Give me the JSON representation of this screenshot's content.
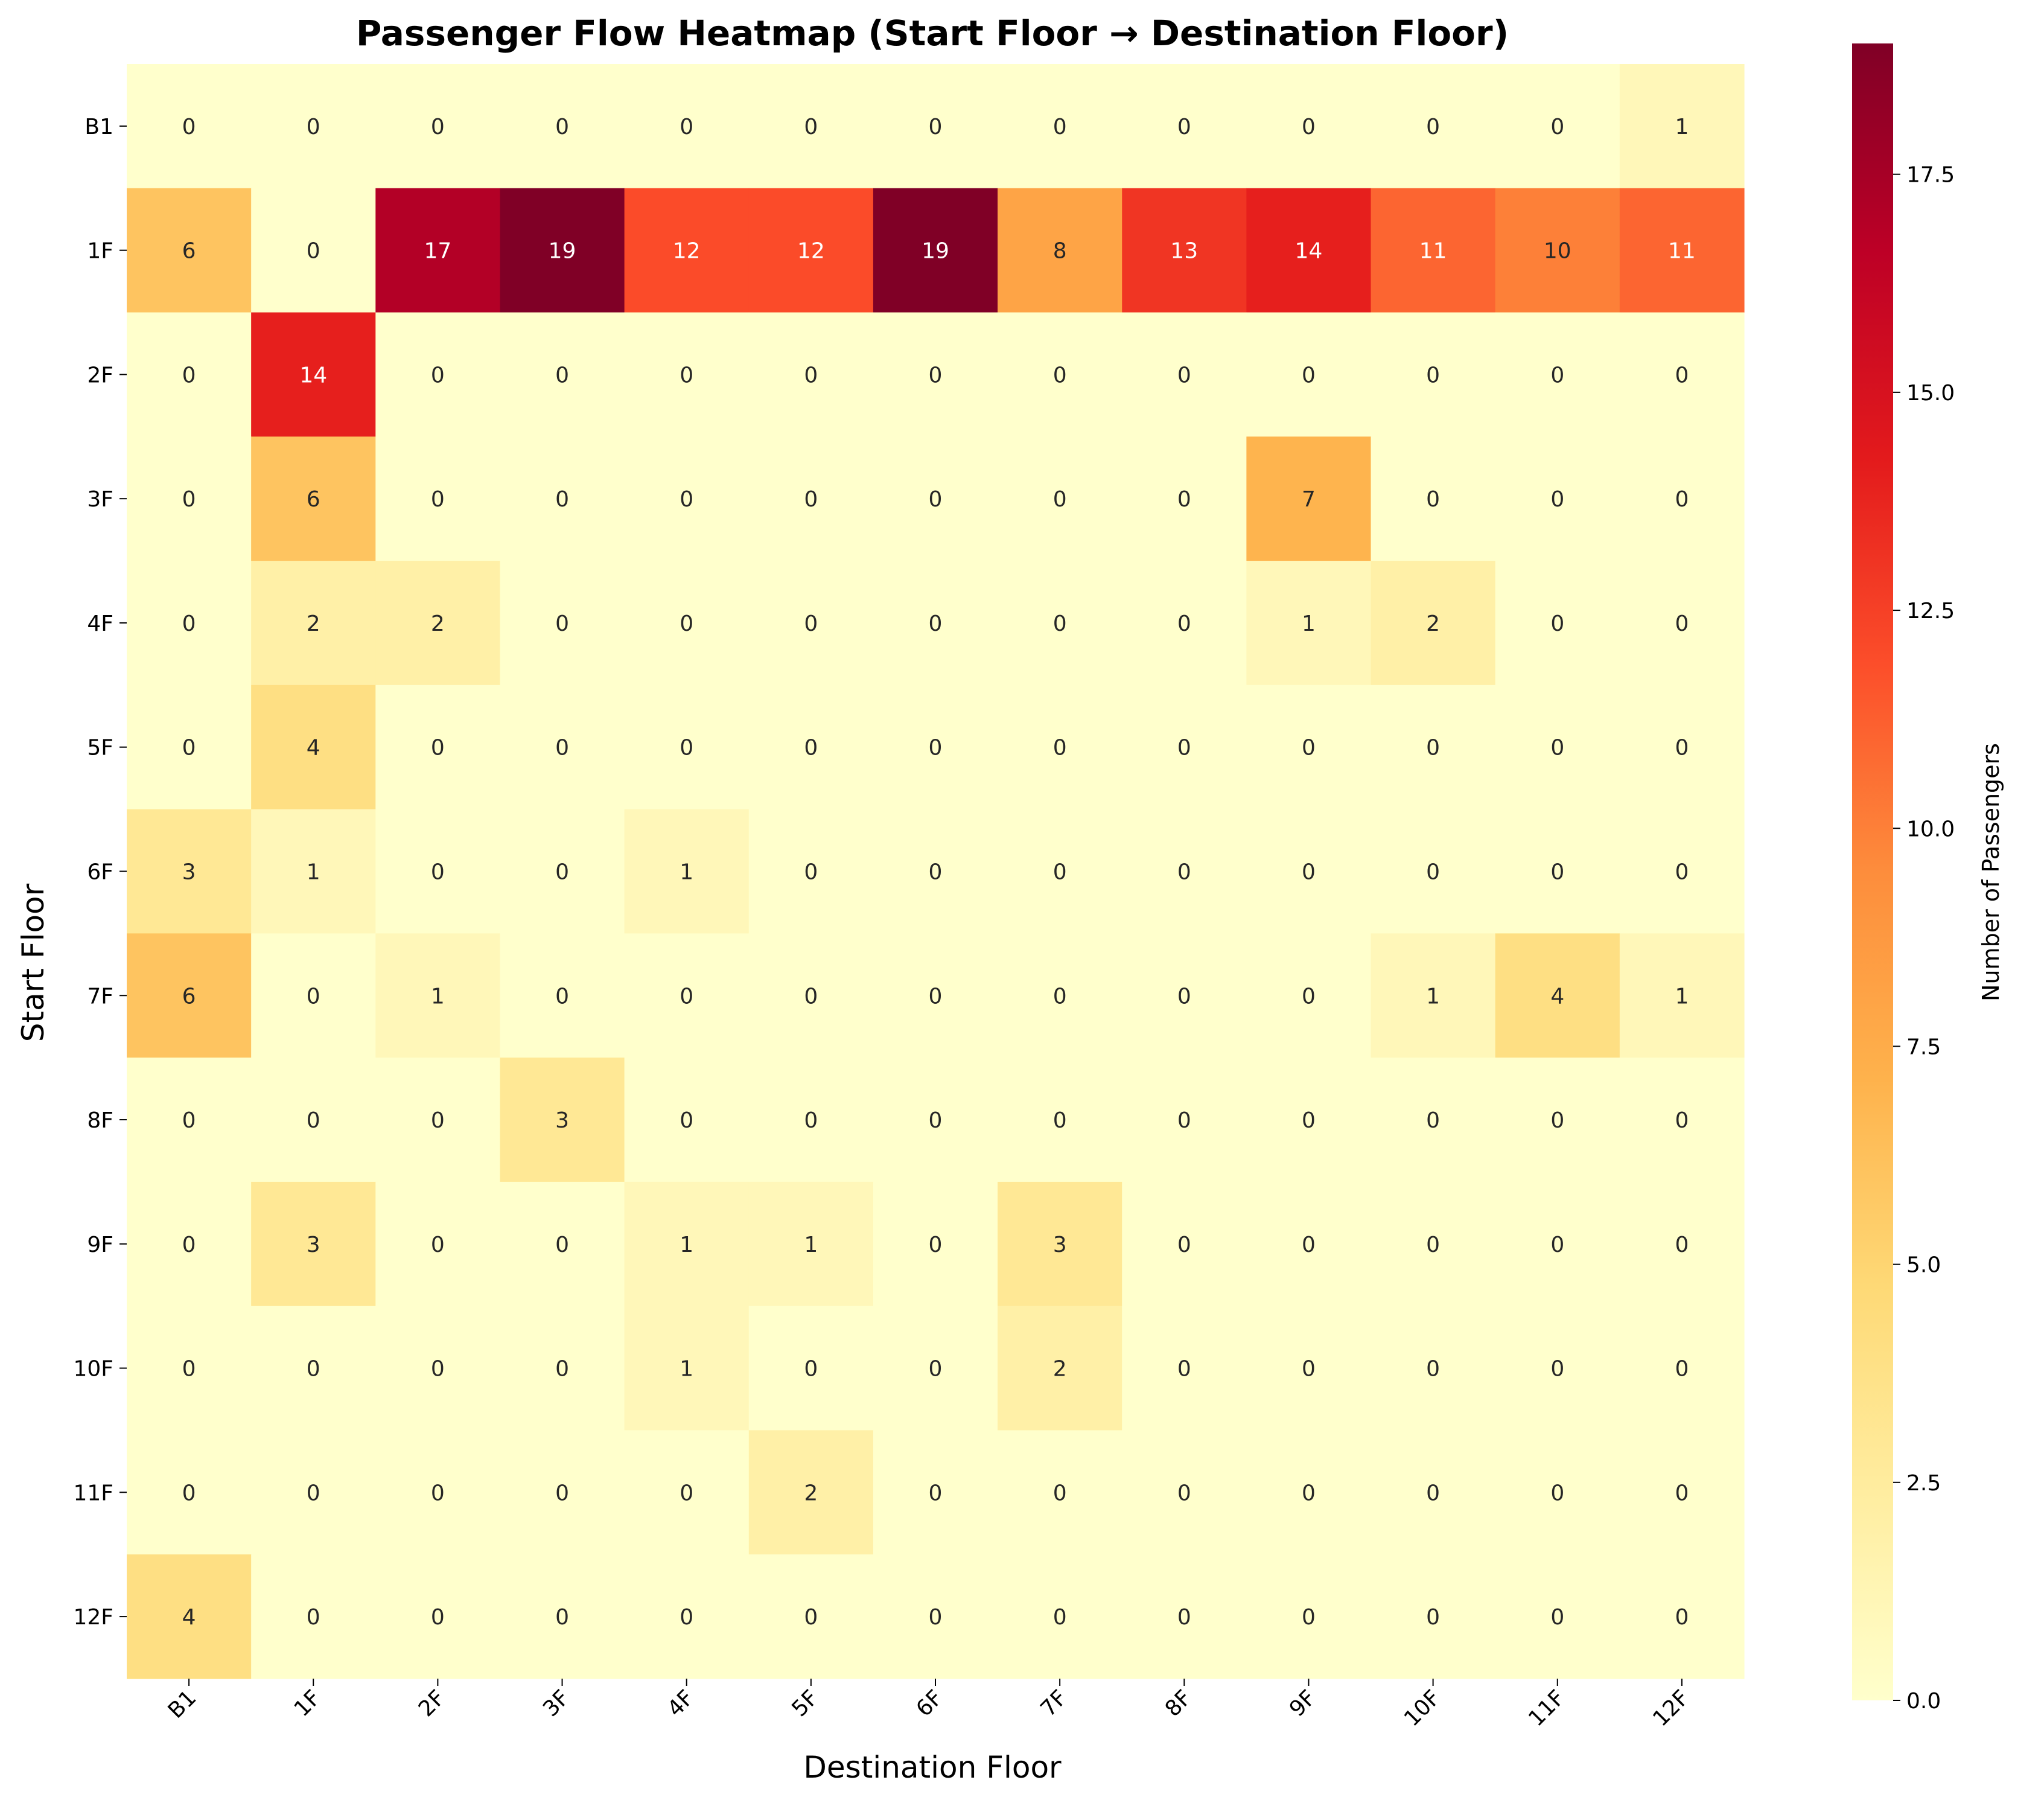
{
  "chart_data": {
    "type": "heatmap",
    "title": "Passenger Flow Heatmap (Start Floor → Destination Floor)",
    "xlabel": "Destination Floor",
    "ylabel": "Start Floor",
    "x_categories": [
      "B1",
      "1F",
      "2F",
      "3F",
      "4F",
      "5F",
      "6F",
      "7F",
      "8F",
      "9F",
      "10F",
      "11F",
      "12F"
    ],
    "y_categories": [
      "B1",
      "1F",
      "2F",
      "3F",
      "4F",
      "5F",
      "6F",
      "7F",
      "8F",
      "9F",
      "10F",
      "11F",
      "12F"
    ],
    "values": [
      [
        0,
        0,
        0,
        0,
        0,
        0,
        0,
        0,
        0,
        0,
        0,
        0,
        1
      ],
      [
        6,
        0,
        17,
        19,
        12,
        12,
        19,
        8,
        13,
        14,
        11,
        10,
        11
      ],
      [
        0,
        14,
        0,
        0,
        0,
        0,
        0,
        0,
        0,
        0,
        0,
        0,
        0
      ],
      [
        0,
        6,
        0,
        0,
        0,
        0,
        0,
        0,
        0,
        7,
        0,
        0,
        0
      ],
      [
        0,
        2,
        2,
        0,
        0,
        0,
        0,
        0,
        0,
        1,
        2,
        0,
        0
      ],
      [
        0,
        4,
        0,
        0,
        0,
        0,
        0,
        0,
        0,
        0,
        0,
        0,
        0
      ],
      [
        3,
        1,
        0,
        0,
        1,
        0,
        0,
        0,
        0,
        0,
        0,
        0,
        0
      ],
      [
        6,
        0,
        1,
        0,
        0,
        0,
        0,
        0,
        0,
        0,
        1,
        4,
        1
      ],
      [
        0,
        0,
        0,
        3,
        0,
        0,
        0,
        0,
        0,
        0,
        0,
        0,
        0
      ],
      [
        0,
        3,
        0,
        0,
        1,
        1,
        0,
        3,
        0,
        0,
        0,
        0,
        0
      ],
      [
        0,
        0,
        0,
        0,
        1,
        0,
        0,
        2,
        0,
        0,
        0,
        0,
        0
      ],
      [
        0,
        0,
        0,
        0,
        0,
        2,
        0,
        0,
        0,
        0,
        0,
        0,
        0
      ],
      [
        4,
        0,
        0,
        0,
        0,
        0,
        0,
        0,
        0,
        0,
        0,
        0,
        0
      ]
    ],
    "colormap": "YlOrRd",
    "vmin": 0,
    "vmax": 19,
    "annotated": true,
    "colorbar": {
      "label": "Number of Passengers",
      "ticks": [
        0.0,
        2.5,
        5.0,
        7.5,
        10.0,
        12.5,
        15.0,
        17.5
      ],
      "tick_labels": [
        "0.0",
        "2.5",
        "5.0",
        "7.5",
        "10.0",
        "12.5",
        "15.0",
        "17.5"
      ]
    }
  }
}
